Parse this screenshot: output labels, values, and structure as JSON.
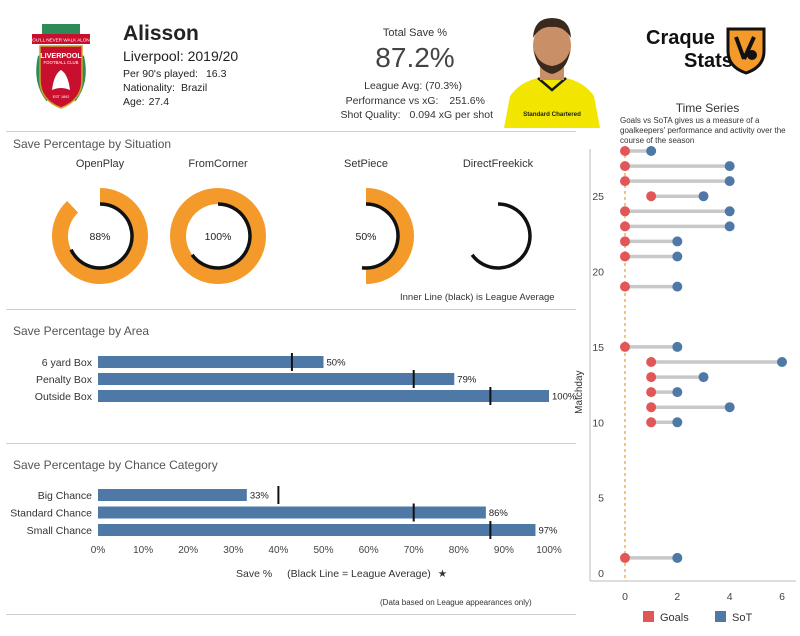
{
  "header": {
    "player_name": "Alisson",
    "team_season": "Liverpool: 2019/20",
    "per90_label": "Per 90's played:",
    "per90_value": "16.3",
    "nationality_label": "Nationality:",
    "nationality_value": "Brazil",
    "age_label": "Age:",
    "age_value": "27.4"
  },
  "kpi": {
    "title": "Total Save %",
    "value": "87.2%",
    "league_avg": "League Avg: (70.3%)",
    "performance_label": "Performance vs xG:",
    "performance_value": "251.6%",
    "shot_quality_label": "Shot Quality:",
    "shot_quality_value": "0.094 xG per shot"
  },
  "club_logo": {
    "banner_text": "YOU'LL NEVER WALK ALONE",
    "name_text": "LIVERPOOL",
    "sub_text": "FOOTBALL CLUB",
    "est_text": "EST 1892"
  },
  "player_photo": {
    "shirt_text": "Standard Chartered"
  },
  "brand": {
    "line1": "Craque",
    "line2": "Stats"
  },
  "colors": {
    "orange": "#f39a2b",
    "bar_blue": "#4e79a7",
    "goals_red": "#e15759",
    "sot_blue": "#4e79a7",
    "connector_grey": "#c8c8c8"
  },
  "chart_data": [
    {
      "type": "donut",
      "title": "Save Percentage by Situation",
      "categories": [
        "OpenPlay",
        "FromCorner",
        "SetPiece",
        "DirectFreekick"
      ],
      "values": [
        88,
        100,
        50,
        null
      ],
      "labels": [
        "88%",
        "100%",
        "50%",
        ""
      ],
      "league_avg": [
        68,
        65,
        52,
        65
      ],
      "note": "Inner Line (black) is League Average"
    },
    {
      "type": "bar",
      "orientation": "horizontal",
      "title": "Save Percentage by Area",
      "categories": [
        "6 yard Box",
        "Penalty Box",
        "Outside Box"
      ],
      "values": [
        50,
        79,
        100
      ],
      "labels": [
        "50%",
        "79%",
        "100%"
      ],
      "league_avg": [
        43,
        70,
        87
      ],
      "xlim": [
        0,
        100
      ]
    },
    {
      "type": "bar",
      "orientation": "horizontal",
      "title": "Save Percentage by Chance Category",
      "categories": [
        "Big Chance",
        "Standard Chance",
        "Small Chance"
      ],
      "values": [
        33,
        86,
        97
      ],
      "labels": [
        "33%",
        "86%",
        "97%"
      ],
      "league_avg": [
        40,
        70,
        87
      ],
      "xlim": [
        0,
        100
      ],
      "xticks": [
        "0%",
        "10%",
        "20%",
        "30%",
        "40%",
        "50%",
        "60%",
        "70%",
        "80%",
        "90%",
        "100%"
      ],
      "xlabel": "Save %",
      "xlabel_note": "(Black Line = League Average)",
      "footnote": "(Data based on League appearances only)"
    },
    {
      "type": "dumbbell",
      "title": "Time Series",
      "description": "Goals vs SoTA gives us a measure of a goalkeepers' performance and activity over the course of the season",
      "ylabel": "Matchday",
      "ylim": [
        0,
        28
      ],
      "yticks": [
        "0",
        "5",
        "10",
        "15",
        "20",
        "25"
      ],
      "xlim": [
        0,
        6
      ],
      "xticks": [
        "0",
        "2",
        "4",
        "6"
      ],
      "legend": [
        "Goals",
        "SoT"
      ],
      "matchday": [
        1,
        10,
        11,
        12,
        13,
        14,
        15,
        19,
        21,
        22,
        23,
        24,
        25,
        26,
        27,
        28
      ],
      "goals": [
        0,
        1,
        1,
        1,
        1,
        1,
        0,
        0,
        0,
        0,
        0,
        0,
        1,
        0,
        0,
        0
      ],
      "sot": [
        2,
        2,
        4,
        2,
        3,
        6,
        2,
        2,
        2,
        2,
        4,
        4,
        3,
        4,
        4,
        1
      ]
    }
  ]
}
